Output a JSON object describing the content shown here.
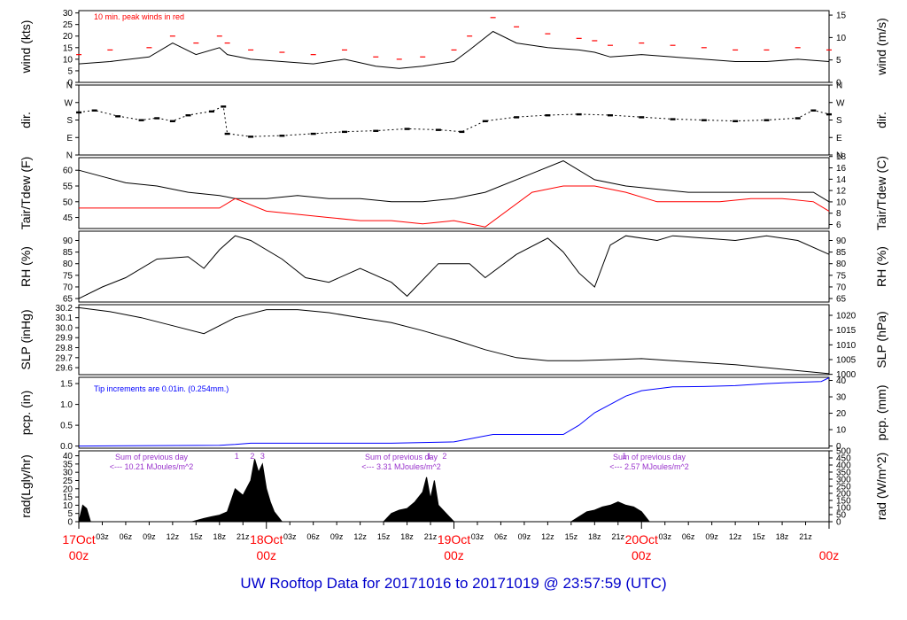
{
  "chart_data": {
    "type": "line",
    "title": "UW Rooftop Data for 20171016  to  20171019 @ 23:57:59  (UTC)",
    "x_ticks": {
      "major": [
        "17Oct",
        "18Oct",
        "19Oct",
        "20Oct"
      ],
      "major_sub": "00z",
      "minor": [
        "03z",
        "06z",
        "09z",
        "12z",
        "15z",
        "18z",
        "21z"
      ]
    },
    "panels": [
      {
        "id": "wind",
        "left_label": "wind (kts)",
        "right_label": "wind (m/s)",
        "left_ticks": [
          "0",
          "5",
          "10",
          "15",
          "20",
          "25",
          "30"
        ],
        "left_range": [
          0,
          31
        ],
        "right_ticks": [
          "0",
          "5",
          "10",
          "15"
        ],
        "right_range": [
          0,
          16
        ],
        "note": "10 min. peak winds in red",
        "series": [
          {
            "name": "wind",
            "color": "#000000",
            "x": [
              0,
              4,
              9,
              12,
              15,
              18,
              19,
              22,
              26,
              30,
              34,
              38,
              41,
              44,
              48,
              50,
              53,
              56,
              60,
              64,
              66,
              68,
              72,
              76,
              80,
              84,
              88,
              92,
              96
            ],
            "y": [
              8,
              9,
              11,
              17,
              12,
              15,
              12,
              10,
              9,
              8,
              10,
              7,
              6,
              7,
              9,
              14,
              22,
              17,
              15,
              14,
              13,
              11,
              12,
              11,
              10,
              9,
              9,
              10,
              9
            ]
          },
          {
            "name": "10 min. peak winds",
            "color": "#ff0000",
            "x": [
              0,
              4,
              9,
              12,
              15,
              18,
              19,
              22,
              26,
              30,
              34,
              38,
              41,
              44,
              48,
              50,
              53,
              56,
              60,
              64,
              66,
              68,
              72,
              76,
              80,
              84,
              88,
              92,
              96
            ],
            "y": [
              12,
              14,
              15,
              20,
              17,
              20,
              17,
              14,
              13,
              12,
              14,
              11,
              10,
              11,
              14,
              20,
              28,
              24,
              21,
              19,
              18,
              16,
              17,
              16,
              15,
              14,
              14,
              15,
              14
            ]
          }
        ]
      },
      {
        "id": "dir",
        "left_label": "dir.",
        "right_label": "dir.",
        "left_ticks": [
          "N",
          "E",
          "S",
          "W",
          "N"
        ],
        "left_range": [
          0,
          360
        ],
        "right_ticks": [
          "N",
          "E",
          "S",
          "W",
          "N"
        ],
        "right_range": [
          0,
          360
        ],
        "series": [
          {
            "name": "direction",
            "color": "#000000",
            "x": [
              0,
              2,
              5,
              8,
              10,
              12,
              14,
              17,
              18.5,
              19,
              22,
              26,
              30,
              34,
              38,
              42,
              46,
              49,
              52,
              56,
              60,
              64,
              68,
              72,
              76,
              80,
              84,
              88,
              92,
              94,
              96
            ],
            "y": [
              220,
              230,
              200,
              180,
              190,
              175,
              205,
              225,
              250,
              110,
              95,
              100,
              110,
              120,
              125,
              135,
              130,
              120,
              175,
              195,
              205,
              210,
              205,
              195,
              185,
              180,
              175,
              180,
              190,
              230,
              210
            ]
          }
        ]
      },
      {
        "id": "temp",
        "left_label": "Tair/Tdew (F)",
        "right_label": "Tair/Tdew (C)",
        "left_ticks": [
          "45",
          "50",
          "55",
          "60"
        ],
        "left_range": [
          41.5,
          64
        ],
        "right_ticks": [
          "6",
          "8",
          "10",
          "12",
          "14",
          "16",
          "18"
        ],
        "right_range": [
          5.3,
          17.8
        ],
        "series": [
          {
            "name": "Tair",
            "color": "#000000",
            "x": [
              0,
              3,
              6,
              10,
              14,
              18,
              20,
              24,
              28,
              32,
              36,
              40,
              44,
              48,
              52,
              58,
              62,
              66,
              70,
              74,
              78,
              82,
              86,
              90,
              94,
              96
            ],
            "y": [
              60,
              58,
              56,
              55,
              53,
              52,
              51,
              51,
              52,
              51,
              51,
              50,
              50,
              51,
              53,
              59,
              63,
              57,
              55,
              54,
              53,
              53,
              53,
              53,
              53,
              50
            ]
          },
          {
            "name": "Tdew",
            "color": "#ff0000",
            "x": [
              0,
              3,
              6,
              10,
              14,
              18,
              20,
              24,
              28,
              32,
              36,
              40,
              44,
              48,
              52,
              58,
              62,
              66,
              70,
              74,
              78,
              82,
              86,
              90,
              94,
              96
            ],
            "y": [
              48,
              48,
              48,
              48,
              48,
              48,
              51,
              47,
              46,
              45,
              44,
              44,
              43,
              44,
              42,
              53,
              55,
              55,
              53,
              50,
              50,
              50,
              51,
              51,
              50,
              47
            ]
          }
        ]
      },
      {
        "id": "rh",
        "left_label": "RH (%)",
        "right_label": "RH (%)",
        "left_ticks": [
          "65",
          "70",
          "75",
          "80",
          "85",
          "90"
        ],
        "left_range": [
          63.5,
          94
        ],
        "right_ticks": [
          "65",
          "70",
          "75",
          "80",
          "85",
          "90"
        ],
        "right_range": [
          63.5,
          94
        ],
        "series": [
          {
            "name": "RH",
            "color": "#000000",
            "x": [
              0,
              3,
              6,
              10,
              14,
              16,
              18,
              20,
              22,
              26,
              29,
              32,
              36,
              40,
              42,
              46,
              50,
              52,
              56,
              60,
              62,
              64,
              66,
              68,
              70,
              74,
              76,
              80,
              84,
              88,
              92,
              96
            ],
            "y": [
              65,
              70,
              74,
              82,
              83,
              78,
              86,
              92,
              90,
              82,
              74,
              72,
              78,
              72,
              66,
              80,
              80,
              74,
              84,
              91,
              85,
              76,
              70,
              88,
              92,
              90,
              92,
              91,
              90,
              92,
              90,
              84
            ]
          }
        ]
      },
      {
        "id": "slp",
        "left_label": "SLP (inHg)",
        "right_label": "SLP (hPa)",
        "left_ticks": [
          "29.6",
          "29.7",
          "29.8",
          "29.9",
          "30.0",
          "30.1",
          "30.2"
        ],
        "left_range": [
          29.53,
          30.23
        ],
        "right_ticks": [
          "1000",
          "1005",
          "1010",
          "1015",
          "1020"
        ],
        "right_range": [
          999.9,
          1023.6
        ],
        "series": [
          {
            "name": "SLP",
            "color": "#000000",
            "x": [
              0,
              4,
              8,
              12,
              16,
              20,
              24,
              28,
              32,
              36,
              40,
              44,
              48,
              52,
              56,
              60,
              64,
              68,
              72,
              76,
              80,
              84,
              88,
              92,
              96
            ],
            "y": [
              30.2,
              30.16,
              30.1,
              30.02,
              29.94,
              30.1,
              30.18,
              30.18,
              30.15,
              30.1,
              30.05,
              29.97,
              29.88,
              29.78,
              29.7,
              29.67,
              29.67,
              29.68,
              29.69,
              29.67,
              29.65,
              29.63,
              29.6,
              29.57,
              29.54
            ]
          }
        ]
      },
      {
        "id": "pcp",
        "left_label": "pcp. (in)",
        "right_label": "pcp. (mm)",
        "left_ticks": [
          "0.0",
          "0.5",
          "1.0",
          "1.5"
        ],
        "left_range": [
          -0.05,
          1.65
        ],
        "right_ticks": [
          "0",
          "10",
          "20",
          "30",
          "40"
        ],
        "right_range": [
          -1.3,
          41.9
        ],
        "note": "Tip increments are 0.01in. (0.254mm.)",
        "series": [
          {
            "name": "pcp",
            "color": "#0000ff",
            "x": [
              0,
              18,
              20,
              22,
              30,
              34,
              38,
              40,
              48,
              53,
              56,
              62,
              64,
              66,
              70,
              72,
              76,
              80,
              84,
              88,
              92,
              95,
              96
            ],
            "y": [
              0.0,
              0.02,
              0.04,
              0.07,
              0.07,
              0.07,
              0.07,
              0.07,
              0.1,
              0.28,
              0.28,
              0.28,
              0.5,
              0.8,
              1.2,
              1.33,
              1.42,
              1.43,
              1.45,
              1.5,
              1.53,
              1.55,
              1.64
            ]
          }
        ]
      },
      {
        "id": "rad",
        "left_label": "rad(Lgly/hr)",
        "right_label": "rad (W/m^2)",
        "left_ticks": [
          "0",
          "5",
          "10",
          "15",
          "20",
          "25",
          "30",
          "35",
          "40"
        ],
        "left_range": [
          0,
          43
        ],
        "right_ticks": [
          "0",
          "50",
          "100",
          "150",
          "200",
          "250",
          "300",
          "350",
          "400",
          "450",
          "500"
        ],
        "right_range": [
          0,
          500
        ],
        "series": [
          {
            "name": "rad",
            "color": "#000000",
            "x": [
              0,
              0.5,
              1,
              1.5,
              14.5,
              16,
              17,
              18,
              19,
              20,
              21,
              22,
              22.5,
              23,
              23.5,
              24,
              24.5,
              25,
              26,
              39,
              40,
              41,
              42,
              43,
              44,
              44.5,
              45,
              45.5,
              46,
              47,
              48,
              63,
              64,
              65,
              66,
              67,
              68,
              69,
              70,
              71,
              72,
              73
            ],
            "y": [
              0,
              10,
              8,
              0,
              0,
              2,
              3,
              4,
              6,
              20,
              16,
              25,
              38,
              30,
              35,
              20,
              12,
              6,
              0,
              0,
              5,
              7,
              8,
              12,
              18,
              27,
              14,
              25,
              10,
              5,
              0,
              0,
              3,
              6,
              7,
              9,
              10,
              12,
              10,
              9,
              6,
              0
            ]
          }
        ],
        "annotations": [
          {
            "day": "Sum of previous day",
            "value": "<--- 10.21 MJoules/m^2"
          },
          {
            "day": "Sum of previous day",
            "value": "<--- 3.31 MJoules/m^2"
          },
          {
            "day": "Sum of previous day",
            "value": "<--- 2.57 MJoules/m^2"
          }
        ],
        "tip_marks": [
          {
            "label": "1",
            "x": 20.2
          },
          {
            "label": "2",
            "x": 22.2
          },
          {
            "label": "3",
            "x": 23.5
          },
          {
            "label": "1",
            "x": 44.8
          },
          {
            "label": "2",
            "x": 46.8
          },
          {
            "label": "1",
            "x": 69.8
          }
        ]
      }
    ],
    "colors": {
      "major_tick_label": "#ff0000",
      "title": "#0000cc",
      "annotation": "#9933cc",
      "note_wind": "#ff0000",
      "note_pcp": "#0000ff"
    }
  }
}
